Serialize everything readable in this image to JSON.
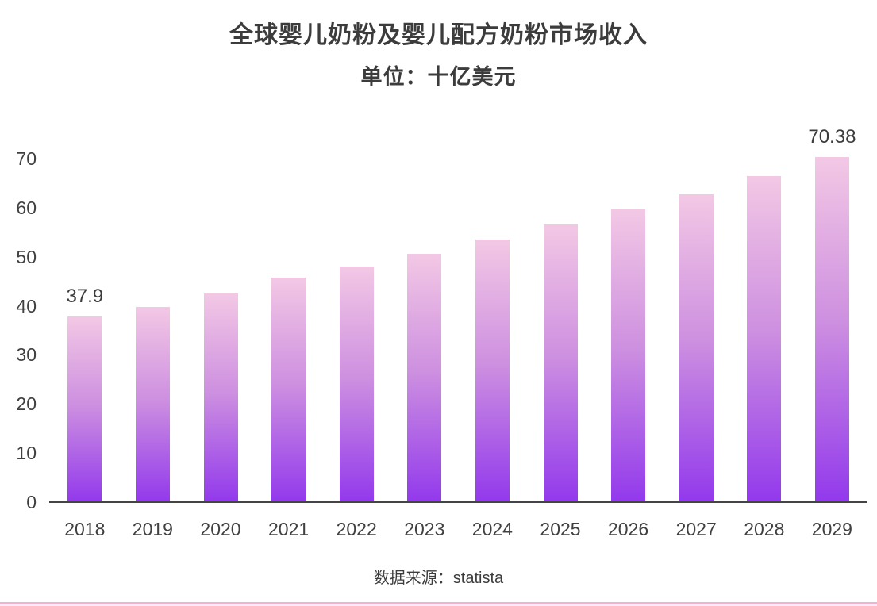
{
  "chart_data": {
    "type": "bar",
    "title": "全球婴儿奶粉及婴儿配方奶粉市场收入",
    "subtitle": "单位：十亿美元",
    "source": "数据来源：statista",
    "categories": [
      "2018",
      "2019",
      "2020",
      "2021",
      "2022",
      "2023",
      "2024",
      "2025",
      "2026",
      "2027",
      "2028",
      "2029"
    ],
    "values": [
      37.9,
      39.7,
      42.5,
      45.7,
      48.0,
      50.6,
      53.5,
      56.5,
      59.7,
      62.7,
      66.4,
      70.38
    ],
    "value_labels": [
      {
        "index": 0,
        "text": "37.9"
      },
      {
        "index": 11,
        "text": "70.38"
      }
    ],
    "xlabel": "",
    "ylabel": "",
    "ylim": [
      0,
      70
    ],
    "yticks": [
      0,
      10,
      20,
      30,
      40,
      50,
      60,
      70
    ],
    "grid": false,
    "legend": "none",
    "colors": {
      "bar_gradient_top": "#f3c8e5",
      "bar_gradient_mid": "#cd8fe0",
      "bar_gradient_bottom": "#9239ec",
      "axis_color": "#444444",
      "text_color": "#3c3c3c",
      "bottom_accent_line": "#f7aed2",
      "bottom_accent_fill": "#fdeaf4",
      "background": "#ffffff"
    }
  }
}
